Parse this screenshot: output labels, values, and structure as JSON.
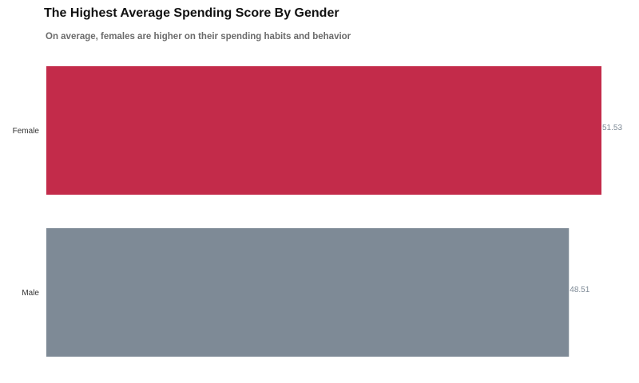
{
  "colors": {
    "female": "#c32b4a",
    "male": "#7e8a96",
    "value_label": "#7e8a96"
  },
  "chart_data": {
    "type": "bar",
    "orientation": "horizontal",
    "title": "The Highest Average Spending Score By Gender",
    "subtitle": "On average, females are higher on their spending habits and behavior",
    "categories": [
      "Female",
      "Male"
    ],
    "values": [
      51.53,
      48.51
    ],
    "value_labels": [
      "51.53",
      "48.51"
    ],
    "xlim": [
      0,
      51.53
    ],
    "grid": false,
    "legend": "none"
  }
}
